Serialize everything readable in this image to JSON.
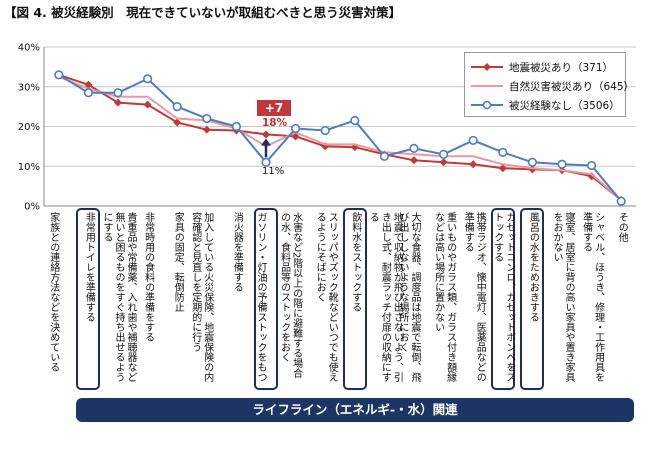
{
  "title": "【図 4. 被災経験別　現在できていないが取組むべきと思う災害対策】",
  "lifeline_banner": "ライフライン（エネルギ-・水）関連",
  "annotation": {
    "delta": "+7",
    "upper": "18%",
    "lower": "11%"
  },
  "colors": {
    "s1": "#c0393b",
    "s2": "#e89aa0",
    "s3": "#4f7cc0",
    "highlight": "#1c2f5e",
    "banner": "#1c3565"
  },
  "chart_data": {
    "type": "line",
    "ylim": [
      0,
      40
    ],
    "yticks": [
      "0%",
      "10%",
      "20%",
      "30%",
      "40%"
    ],
    "grid": true,
    "legend_position": "top-right",
    "categories": [
      "家族との連絡方法などを決めている",
      "非常用トイレを準備する",
      "貴重品や常備薬、入れ歯や補聴器など無いと困るものをすぐ持ち出せるようにする",
      "非常時用の食料の準備をする",
      "家具の固定、転倒防止",
      "加入している火災保険、地震保険の内容確認と見直しを定期的に行う",
      "消火器を準備する",
      "ガソリン・灯油の予備ストックをもつ",
      "水害など2階以上の階に避難する場合の水、食料品等のストックをおく",
      "スリッパやズック靴などいつでも使えるようにそばにおく",
      "飲料水をストックする",
      "地震で収納物が飛び出さないよう、引き出し式、耐震ラッチ付扉の収納にする",
      "大切な食器、調度品は地震で転倒、飛び出ししないような場所におく",
      "重いものやガラス類、ガラス付き額縁などは高い場所に置かない",
      "携帯ラジオ、懐中電灯、医薬品などの準備する",
      "カセットコンロ、カセットボンベをストックする",
      "風呂の水をためおきする",
      "寝室、居室に背の高い家具や置き家具をおかない",
      "シャベル、ほうき、修理・工作用具を準備する",
      "その他"
    ],
    "highlight_indices": [
      1,
      7,
      10,
      15,
      16
    ],
    "series": [
      {
        "name": "地震被災あり（371）",
        "color": "#c0393b",
        "marker": "diamond",
        "values": [
          33,
          30.5,
          26,
          25.5,
          21,
          19.2,
          19,
          18,
          17.5,
          15,
          14.8,
          13,
          11.5,
          11,
          10.5,
          9.5,
          9.2,
          9,
          7.5,
          1.5
        ]
      },
      {
        "name": "自然災害被災あり（645）",
        "color": "#e89aa0",
        "marker": "none",
        "values": [
          32.5,
          29.5,
          27.5,
          27.5,
          22,
          21.5,
          19.5,
          15,
          18.5,
          15.5,
          15.5,
          13.5,
          13,
          12.5,
          12.5,
          10.5,
          9.5,
          9,
          8,
          1.5
        ]
      },
      {
        "name": "被災経験なし（3506）",
        "color": "#4f7cc0",
        "marker": "circle",
        "values": [
          33,
          28.5,
          28.5,
          32,
          25,
          22,
          20,
          11,
          19.5,
          19,
          21.5,
          12.5,
          14.5,
          13,
          16.5,
          13.5,
          11,
          10.5,
          10.2,
          1.2
        ]
      }
    ]
  }
}
